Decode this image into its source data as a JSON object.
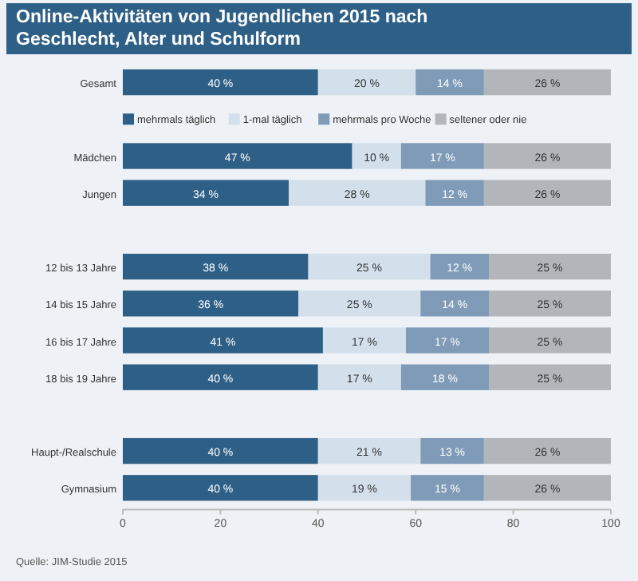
{
  "chart_data": {
    "type": "bar",
    "orientation": "horizontal",
    "stacked": true,
    "title": "Online-Aktivitäten von Jugendlichen 2015 nach Geschlecht, Alter und Schulform",
    "categories": [
      "Gesamt",
      null,
      "Mädchen",
      "Jungen",
      null,
      "12 bis 13 Jahre",
      "14 bis 15 Jahre",
      "16 bis 17 Jahre",
      "18 bis 19 Jahre",
      null,
      "Haupt-/Realschule",
      "Gymnasium"
    ],
    "series": [
      {
        "name": "mehrmals täglich",
        "color": "#2e5f86",
        "values": [
          40,
          null,
          47,
          34,
          null,
          38,
          36,
          41,
          40,
          null,
          40,
          40
        ],
        "value_labels": [
          "40 %",
          null,
          "47 %",
          "34 %",
          null,
          "38 %",
          "36 %",
          "41 %",
          "40 %",
          null,
          "40 %",
          "40 %"
        ]
      },
      {
        "name": "1-mal täglich",
        "color": "#d3e0ec",
        "values": [
          20,
          null,
          10,
          28,
          null,
          25,
          25,
          17,
          17,
          null,
          21,
          19
        ],
        "value_labels": [
          "20 %",
          null,
          "10 %",
          "28 %",
          null,
          "25 %",
          "25 %",
          "17 %",
          "17 %",
          null,
          "21 %",
          "19 %"
        ]
      },
      {
        "name": "mehrmals pro Woche",
        "color": "#7f9bb8",
        "values": [
          14,
          null,
          17,
          12,
          null,
          12,
          14,
          17,
          18,
          null,
          13,
          15
        ],
        "value_labels": [
          "14 %",
          null,
          "17 %",
          "12 %",
          null,
          "12 %",
          "14 %",
          "17 %",
          "18 %",
          null,
          "13 %",
          "15 %"
        ]
      },
      {
        "name": "seltener oder nie",
        "color": "#b2b5ba",
        "values": [
          26,
          null,
          26,
          26,
          null,
          25,
          25,
          25,
          25,
          null,
          26,
          26
        ],
        "value_labels": [
          "26 %",
          null,
          "26 %",
          "26 %",
          null,
          "25 %",
          "25 %",
          "25 %",
          "25 %",
          null,
          "26 %",
          "26 %"
        ]
      }
    ],
    "xlim": [
      0,
      100
    ],
    "xticks": [
      0,
      20,
      40,
      60,
      80,
      100
    ],
    "legend": "top",
    "grid": false,
    "annotations": [
      "Quelle: JIM-Studie 2015"
    ]
  }
}
